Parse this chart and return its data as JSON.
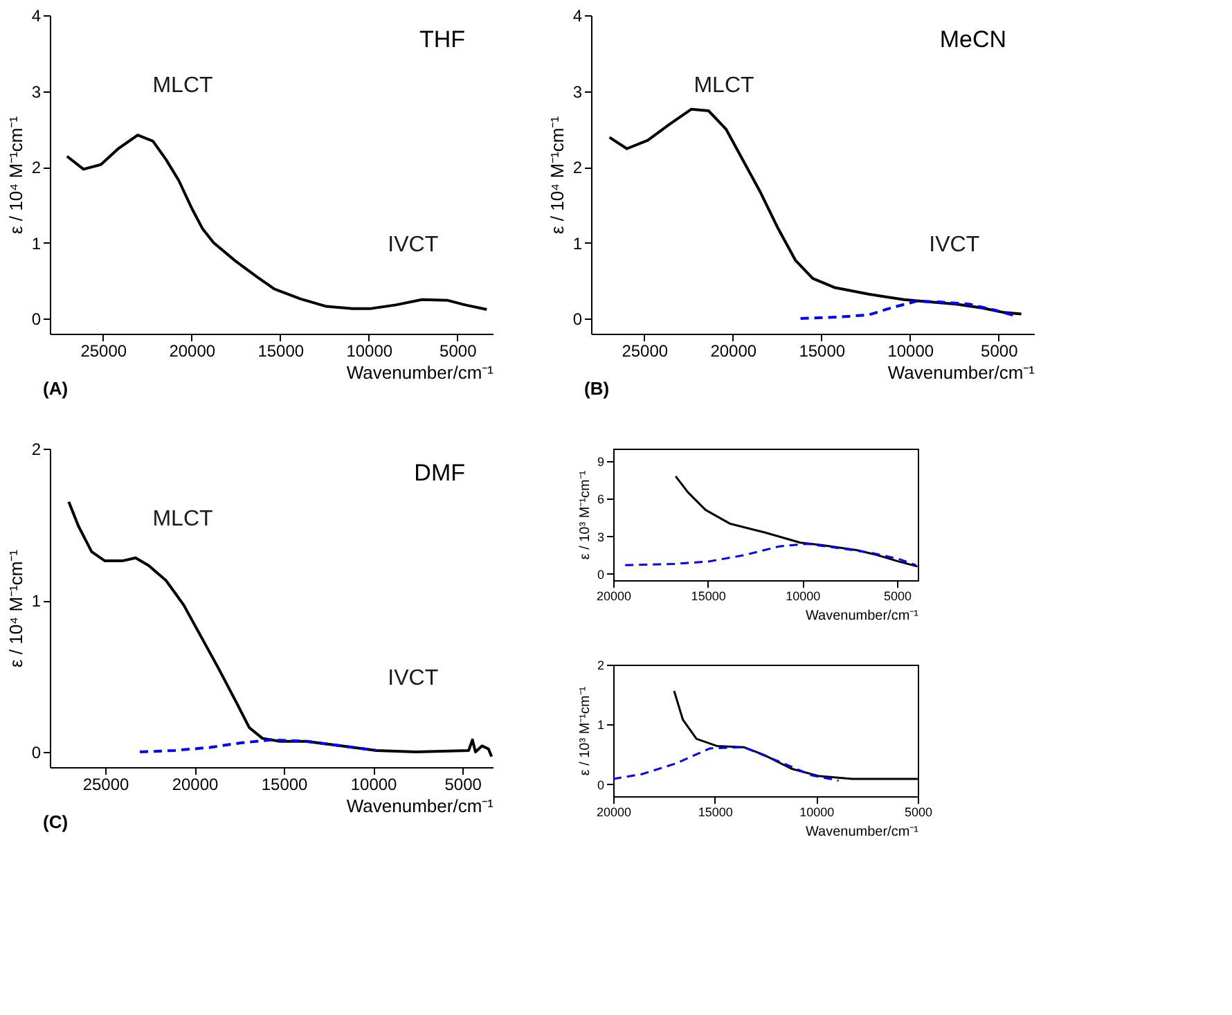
{
  "chart_data": [
    {
      "type": "line",
      "xlabel": "Wavenumber/cm⁻¹",
      "ylabel": "ε / 10⁴ M⁻¹cm⁻¹",
      "xlim": [
        28000,
        3000
      ],
      "xticks": [
        25000,
        20000,
        15000,
        10000,
        5000
      ],
      "ylim": [
        -0.2,
        4
      ],
      "yticks": [
        0,
        1,
        2,
        3,
        4
      ],
      "series": [
        {
          "color": "#000000",
          "line_style": "solid",
          "x": [
            27030,
            26100,
            25120,
            24140,
            23040,
            22180,
            21450,
            20720,
            19980,
            19370,
            18760,
            17530,
            16310,
            15330,
            13860,
            12390,
            10920,
            9940,
            8470,
            7000,
            5540,
            4560,
            3340
          ],
          "values": [
            2.14,
            1.97,
            2.03,
            2.24,
            2.42,
            2.34,
            2.1,
            1.82,
            1.45,
            1.18,
            1.0,
            0.76,
            0.55,
            0.39,
            0.26,
            0.16,
            0.13,
            0.13,
            0.18,
            0.25,
            0.24,
            0.18,
            0.12
          ]
        }
      ],
      "annotations": [
        "THF",
        "(A)",
        "MLCT",
        "IVCT"
      ]
    },
    {
      "type": "line",
      "xlabel": "Wavenumber/cm⁻¹",
      "ylabel": "ε / 10⁴ M⁻¹cm⁻¹",
      "xlim": [
        28000,
        3000
      ],
      "xticks": [
        25000,
        20000,
        15000,
        10000,
        5000
      ],
      "ylim": [
        -0.2,
        4
      ],
      "yticks": [
        0,
        1,
        2,
        3,
        4
      ],
      "series": [
        {
          "color": "#000000",
          "line_style": "solid",
          "x": [
            26960,
            25980,
            24800,
            23580,
            22350,
            21370,
            20390,
            19410,
            18430,
            17450,
            16470,
            15490,
            14270,
            12300,
            10340,
            9360,
            7400,
            5930,
            4700,
            3720
          ],
          "values": [
            2.39,
            2.24,
            2.35,
            2.56,
            2.76,
            2.74,
            2.5,
            2.08,
            1.66,
            1.19,
            0.77,
            0.53,
            0.41,
            0.32,
            0.25,
            0.23,
            0.19,
            0.14,
            0.08,
            0.06
          ]
        },
        {
          "color": "#0000ff",
          "line_style": "dashed",
          "x": [
            16180,
            14020,
            12300,
            11080,
            9610,
            8380,
            6670,
            5200,
            3950
          ],
          "values": [
            0.0,
            0.02,
            0.05,
            0.14,
            0.23,
            0.22,
            0.19,
            0.11,
            0.03
          ]
        }
      ],
      "annotations": [
        "MeCN",
        "(B)",
        "MLCT",
        "IVCT"
      ]
    },
    {
      "type": "line",
      "xlabel": "Wavenumber/cm⁻¹",
      "ylabel": "ε / 10³ M⁻¹cm⁻¹",
      "xlim": [
        20000,
        3900
      ],
      "xticks": [
        20000,
        15000,
        10000,
        5000
      ],
      "ylim": [
        -0.5,
        10
      ],
      "yticks": [
        0,
        3,
        6,
        9
      ],
      "series": [
        {
          "color": "#000000",
          "line_style": "solid",
          "x": [
            16700,
            16040,
            15110,
            13810,
            11960,
            10110,
            8990,
            7140,
            6030,
            4920,
            3920
          ],
          "values": [
            7.8,
            6.5,
            5.1,
            4.0,
            3.3,
            2.5,
            2.3,
            1.9,
            1.5,
            1.0,
            0.6
          ]
        },
        {
          "color": "#0000ff",
          "line_style": "dashed",
          "x": [
            19370,
            16780,
            14930,
            13070,
            11220,
            9740,
            8260,
            6410,
            4920,
            4000
          ],
          "values": [
            0.7,
            0.8,
            1.0,
            1.5,
            2.2,
            2.4,
            2.1,
            1.7,
            1.2,
            0.7
          ]
        }
      ]
    },
    {
      "type": "line",
      "xlabel": "Wavenumber/cm⁻¹",
      "ylabel": "ε / 10⁴ M⁻¹cm⁻¹",
      "xlim": [
        28100,
        3300
      ],
      "xticks": [
        25000,
        20000,
        15000,
        10000,
        5000
      ],
      "ylim": [
        -0.1,
        2
      ],
      "yticks": [
        0,
        1,
        2
      ],
      "series": [
        {
          "color": "#000000",
          "line_style": "solid",
          "x": [
            27040,
            26500,
            25760,
            25020,
            24040,
            23300,
            22570,
            21590,
            20610,
            19630,
            18650,
            17670,
            16930,
            16200,
            15220,
            13740,
            11780,
            9810,
            7600,
            4650,
            4440,
            4270,
            3900,
            3540,
            3370
          ],
          "values": [
            1.65,
            1.49,
            1.32,
            1.26,
            1.26,
            1.28,
            1.23,
            1.13,
            0.97,
            0.76,
            0.55,
            0.33,
            0.16,
            0.09,
            0.07,
            0.07,
            0.04,
            0.01,
            0.0,
            0.01,
            0.08,
            0.0,
            0.04,
            0.02,
            -0.03
          ]
        },
        {
          "color": "#0000ff",
          "line_style": "dashed",
          "x": [
            23060,
            21100,
            19130,
            17410,
            15690,
            13730,
            11770,
            9810
          ],
          "values": [
            0.0,
            0.01,
            0.03,
            0.06,
            0.08,
            0.07,
            0.04,
            0.01
          ]
        }
      ],
      "annotations": [
        "DMF",
        "(C)",
        "MLCT",
        "IVCT"
      ]
    },
    {
      "type": "line",
      "xlabel": "Wavenumber/cm⁻¹",
      "ylabel": "ε / 10³ M⁻¹cm⁻¹",
      "xlim": [
        20000,
        5000
      ],
      "xticks": [
        20000,
        15000,
        10000,
        5000
      ],
      "ylim": [
        -0.2,
        2
      ],
      "yticks": [
        0,
        1,
        2
      ],
      "series": [
        {
          "color": "#000000",
          "line_style": "solid",
          "x": [
            17000,
            16570,
            15900,
            14900,
            13570,
            12570,
            11230,
            9900,
            8230,
            5000
          ],
          "values": [
            1.56,
            1.08,
            0.76,
            0.64,
            0.62,
            0.49,
            0.26,
            0.14,
            0.09,
            0.09
          ]
        },
        {
          "color": "#0000ff",
          "line_style": "dashed",
          "x": [
            20000,
            18570,
            16900,
            15230,
            13570,
            11900,
            10230,
            8900
          ],
          "values": [
            0.09,
            0.17,
            0.35,
            0.6,
            0.62,
            0.39,
            0.15,
            0.06
          ]
        }
      ]
    }
  ]
}
